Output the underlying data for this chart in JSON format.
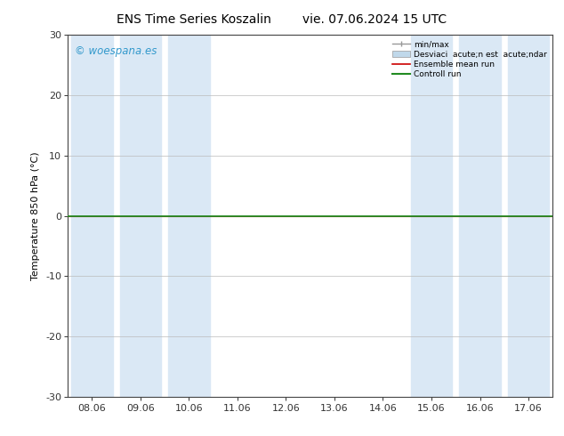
{
  "title": "ENS Time Series Koszalin        vie. 07.06.2024 15 UTC",
  "ylabel": "Temperature 850 hPa (°C)",
  "xlim_labels": [
    "08.06",
    "09.06",
    "10.06",
    "11.06",
    "12.06",
    "13.06",
    "14.06",
    "15.06",
    "16.06",
    "17.06"
  ],
  "ylim": [
    -30,
    30
  ],
  "yticks": [
    -30,
    -20,
    -10,
    0,
    10,
    20,
    30
  ],
  "bg_color": "#ffffff",
  "plot_bg_color": "#ffffff",
  "shaded_indices": [
    0,
    1,
    2,
    7,
    8,
    9
  ],
  "band_color": "#dae8f5",
  "zero_line_y": 0,
  "control_run_color": "#228B22",
  "ensemble_mean_color": "#cc0000",
  "minmax_color": "#999999",
  "std_color": "#c0d8ea",
  "watermark_text": "© woespana.es",
  "watermark_color": "#3399cc",
  "title_fontsize": 10,
  "axis_fontsize": 8,
  "tick_fontsize": 8,
  "legend_label_minmax": "min/max",
  "legend_label_std": "Desviaci  acute;n est  acute;ndar",
  "legend_label_mean": "Ensemble mean run",
  "legend_label_ctrl": "Controll run"
}
